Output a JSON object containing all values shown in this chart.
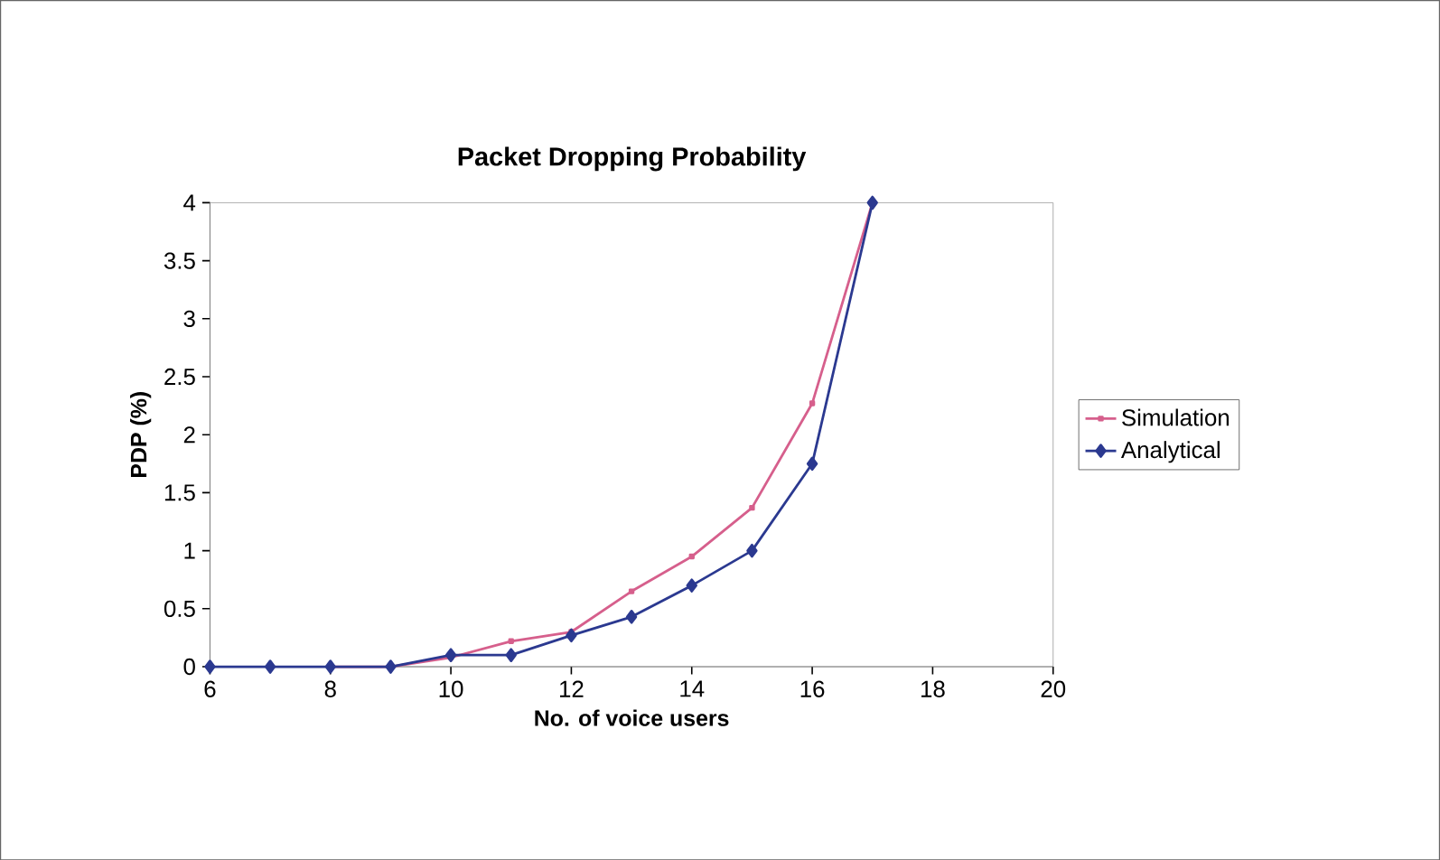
{
  "chart_data": {
    "type": "line",
    "title": "Packet Dropping Probability",
    "xlabel": "No. of voice users",
    "ylabel": "PDP (%)",
    "x": [
      6,
      7,
      8,
      9,
      10,
      11,
      12,
      13,
      14,
      15,
      16,
      17
    ],
    "series": [
      {
        "name": "Simulation",
        "color": "#d65f8c",
        "marker": "square",
        "values": [
          null,
          null,
          0,
          0,
          0.08,
          0.22,
          0.3,
          0.65,
          0.95,
          1.37,
          2.27,
          4
        ]
      },
      {
        "name": "Analytical",
        "color": "#2b3990",
        "marker": "diamond",
        "values": [
          0,
          0,
          0,
          0,
          0.1,
          0.1,
          0.27,
          0.43,
          0.7,
          1.0,
          1.75,
          4
        ]
      }
    ],
    "xlim": [
      6,
      20
    ],
    "xticks": [
      6,
      8,
      10,
      12,
      14,
      16,
      18,
      20
    ],
    "ylim": [
      0,
      4
    ],
    "yticks": [
      0,
      0.5,
      1,
      1.5,
      2,
      2.5,
      3,
      3.5,
      4
    ],
    "grid": false,
    "legend": "right"
  }
}
